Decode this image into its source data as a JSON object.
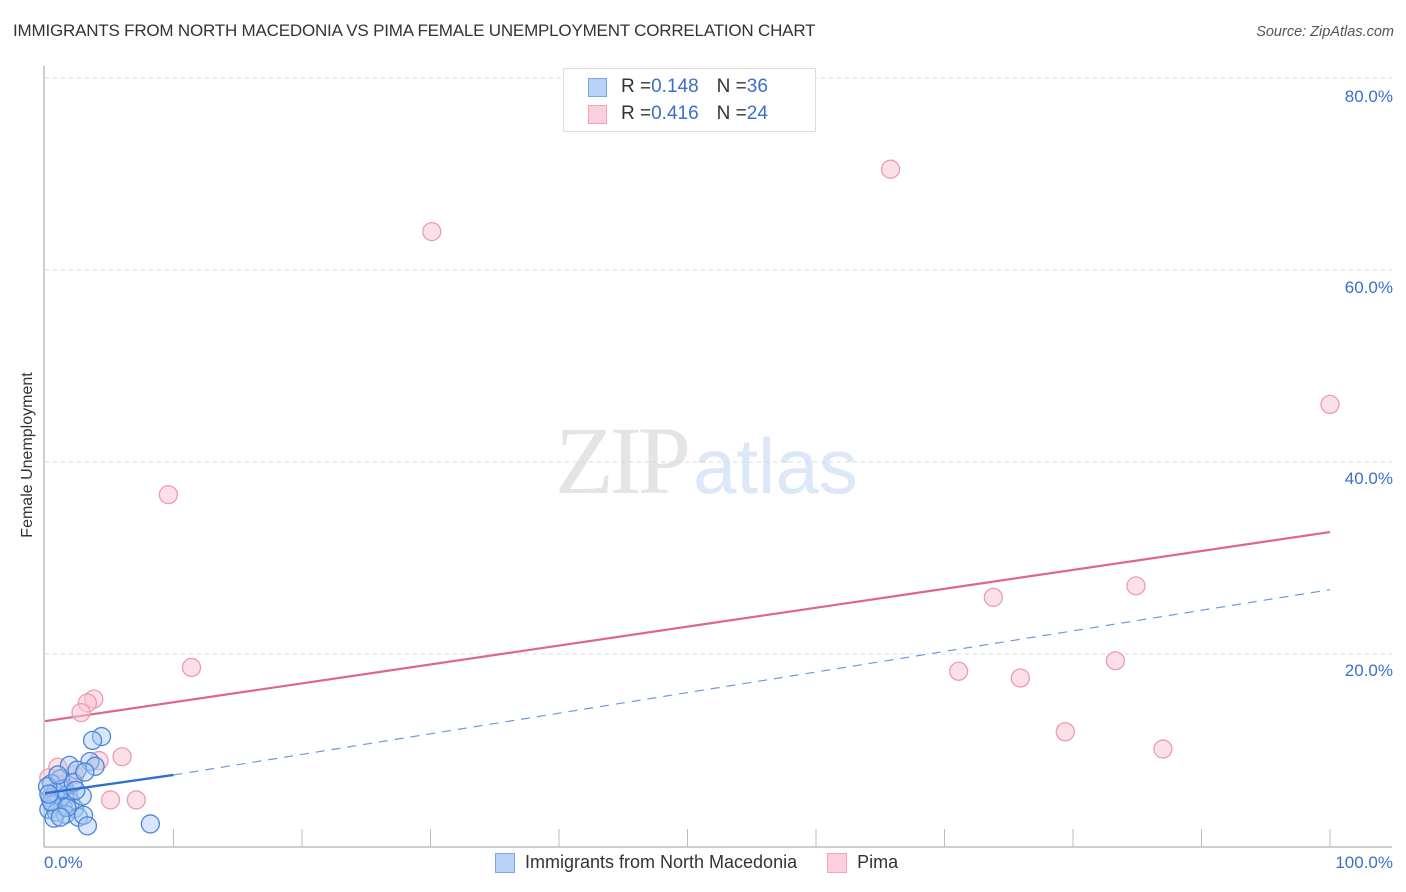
{
  "header": {
    "title": "IMMIGRANTS FROM NORTH MACEDONIA VS PIMA FEMALE UNEMPLOYMENT CORRELATION CHART",
    "source": "Source: ZipAtlas.com"
  },
  "legend": {
    "rows": [
      {
        "series": "Immigrants from North Macedonia",
        "r_label": "R = ",
        "r_value": "0.148",
        "n_label": "N = ",
        "n_value": "36",
        "color": "#a9c8f2",
        "border": "#7aa7e3"
      },
      {
        "series": "Pima",
        "r_label": "R = ",
        "r_value": "0.416",
        "n_label": "N = ",
        "n_value": "24",
        "color": "#f9c6d4",
        "border": "#f0a3b9"
      }
    ],
    "bottom": [
      {
        "label": "Immigrants from North Macedonia",
        "color": "#b8d3f5",
        "border": "#7aa7e3"
      },
      {
        "label": "Pima",
        "color": "#fbd0dc",
        "border": "#f0a3b9"
      }
    ]
  },
  "axes": {
    "ylabel": "Female Unemployment",
    "y_ticks": [
      "80.0%",
      "60.0%",
      "40.0%",
      "20.0%"
    ],
    "x_ticks": [
      "0.0%",
      "100.0%"
    ]
  },
  "watermark": {
    "zip": "ZIP",
    "atlas": "atlas"
  },
  "colors": {
    "blue_fill": "#a9c8f2",
    "blue_stroke": "#4a86d8",
    "blue_line": "#2f6fd0",
    "pink_fill": "#f9c6d4",
    "pink_stroke": "#ee9ab2",
    "pink_line": "#e0658e",
    "tick_text": "#3b6fc8"
  },
  "chart_data": {
    "type": "scatter",
    "title": "IMMIGRANTS FROM NORTH MACEDONIA VS PIMA FEMALE UNEMPLOYMENT CORRELATION CHART",
    "xlabel": "",
    "ylabel": "Female Unemployment",
    "xlim": [
      0,
      100
    ],
    "ylim": [
      0,
      80
    ],
    "x_unit": "%",
    "y_unit": "%",
    "grid": {
      "y": true,
      "x": false,
      "style": "dashed"
    },
    "legend_position": "top-center",
    "series": [
      {
        "name": "Immigrants from North Macedonia",
        "R": 0.148,
        "N": 36,
        "color": "#a9c8f2",
        "points": [
          [
            4.4,
            11.4
          ],
          [
            3.7,
            11.0
          ],
          [
            3.5,
            8.8
          ],
          [
            3.9,
            8.3
          ],
          [
            1.9,
            8.4
          ],
          [
            2.5,
            7.9
          ],
          [
            1.2,
            7.0
          ],
          [
            0.5,
            6.5
          ],
          [
            1.5,
            6.0
          ],
          [
            0.8,
            5.6
          ],
          [
            1.8,
            5.4
          ],
          [
            0.4,
            5.0
          ],
          [
            1.1,
            4.8
          ],
          [
            2.0,
            4.6
          ],
          [
            0.6,
            4.3
          ],
          [
            1.4,
            4.1
          ],
          [
            2.3,
            3.9
          ],
          [
            0.3,
            3.8
          ],
          [
            0.9,
            3.5
          ],
          [
            1.6,
            3.3
          ],
          [
            2.6,
            3.0
          ],
          [
            0.7,
            2.9
          ],
          [
            1.3,
            5.9
          ],
          [
            0.2,
            6.2
          ],
          [
            2.9,
            5.2
          ],
          [
            3.0,
            3.2
          ],
          [
            3.3,
            2.1
          ],
          [
            8.2,
            2.3
          ],
          [
            2.2,
            6.6
          ],
          [
            1.0,
            7.4
          ],
          [
            0.5,
            4.6
          ],
          [
            1.7,
            4.0
          ],
          [
            2.4,
            5.8
          ],
          [
            0.3,
            5.4
          ],
          [
            1.2,
            3.0
          ],
          [
            3.1,
            7.7
          ]
        ],
        "trend": {
          "x": [
            0,
            10
          ],
          "y": [
            5.5,
            7.4
          ],
          "style": "solid",
          "extended": {
            "x": [
              10,
              100
            ],
            "y": [
              7.4,
              26.7
            ],
            "style": "dashed"
          }
        }
      },
      {
        "name": "Pima",
        "R": 0.416,
        "N": 24,
        "color": "#f9c6d4",
        "points": [
          [
            65.8,
            70.5
          ],
          [
            30.1,
            64.0
          ],
          [
            9.6,
            36.6
          ],
          [
            100.0,
            46.0
          ],
          [
            11.4,
            18.6
          ],
          [
            73.8,
            25.9
          ],
          [
            84.9,
            27.1
          ],
          [
            71.1,
            18.2
          ],
          [
            75.9,
            17.5
          ],
          [
            83.3,
            19.3
          ],
          [
            79.4,
            11.9
          ],
          [
            87.0,
            10.1
          ],
          [
            3.8,
            15.3
          ],
          [
            3.3,
            14.9
          ],
          [
            2.8,
            13.9
          ],
          [
            6.0,
            9.3
          ],
          [
            4.2,
            8.9
          ],
          [
            5.1,
            4.8
          ],
          [
            7.1,
            4.8
          ],
          [
            1.0,
            8.2
          ],
          [
            0.3,
            7.1
          ],
          [
            2.3,
            7.4
          ],
          [
            1.5,
            6.3
          ],
          [
            0.7,
            5.3
          ]
        ],
        "trend": {
          "x": [
            0,
            100
          ],
          "y": [
            13.0,
            32.7
          ],
          "style": "solid"
        }
      }
    ]
  }
}
